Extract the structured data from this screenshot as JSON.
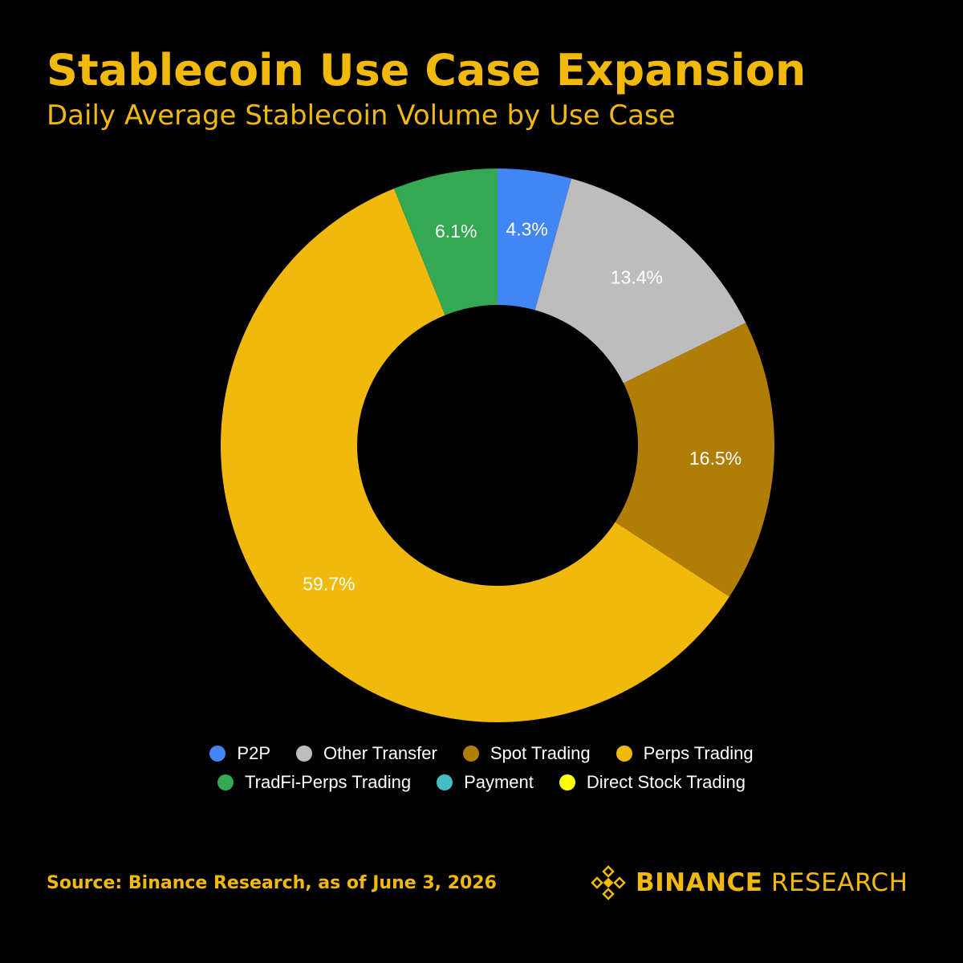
{
  "header": {
    "title": "Stablecoin Use Case Expansion",
    "subtitle": "Daily Average Stablecoin Volume by Use Case"
  },
  "chart_data": {
    "type": "pie",
    "variant": "donut",
    "title": "Stablecoin Use Case Expansion",
    "subtitle": "Daily Average Stablecoin Volume by Use Case",
    "start_angle_deg": 0,
    "direction": "clockwise",
    "label_color": "#FFFFFF",
    "slices": [
      {
        "name": "P2P",
        "value": 4.3,
        "label": "4.3%",
        "color": "#4285F4"
      },
      {
        "name": "Other Transfer",
        "value": 13.4,
        "label": "13.4%",
        "color": "#BDBDBD"
      },
      {
        "name": "Spot Trading",
        "value": 16.5,
        "label": "16.5%",
        "color": "#B07D07"
      },
      {
        "name": "Perps Trading",
        "value": 59.7,
        "label": "59.7%",
        "color": "#F0B90B"
      },
      {
        "name": "TradFi-Perps Trading",
        "value": 6.1,
        "label": "6.1%",
        "color": "#34A853"
      },
      {
        "name": "Payment",
        "value": 0,
        "label": "",
        "color": "#46BDC6"
      },
      {
        "name": "Direct Stock Trading",
        "value": 0,
        "label": "",
        "color": "#FFFF00"
      }
    ],
    "legend_placement": "bottom"
  },
  "legend": {
    "row1": [
      {
        "label": "P2P",
        "color": "#4285F4"
      },
      {
        "label": "Other Transfer",
        "color": "#BDBDBD"
      },
      {
        "label": "Spot Trading",
        "color": "#B07D07"
      },
      {
        "label": "Perps Trading",
        "color": "#F0B90B"
      }
    ],
    "row2": [
      {
        "label": "TradFi-Perps Trading",
        "color": "#34A853"
      },
      {
        "label": "Payment",
        "color": "#46BDC6"
      },
      {
        "label": "Direct Stock Trading",
        "color": "#FFFF00"
      }
    ]
  },
  "footer": {
    "source": "Source: Binance Research, as of June 3, 2026",
    "brand_primary": "BINANCE",
    "brand_secondary": "RESEARCH",
    "brand_icon": "binance-diamond-icon"
  },
  "colors": {
    "background": "#000000",
    "accent": "#F0B90B"
  }
}
